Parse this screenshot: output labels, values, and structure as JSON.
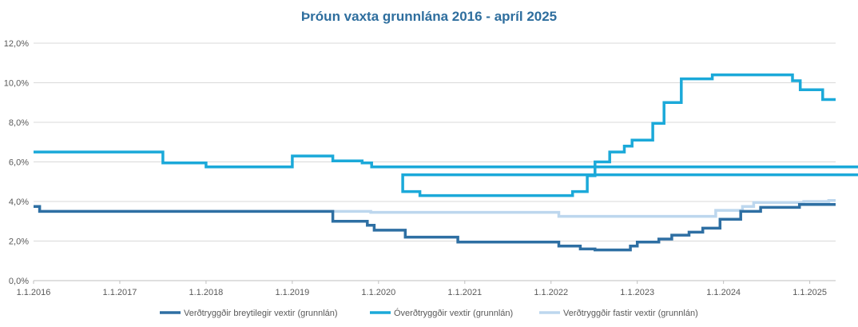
{
  "chart_data": {
    "type": "line",
    "title": "Þróun vaxta grunnlána 2016 - apríl 2025",
    "xlabel": "",
    "ylabel": "",
    "x_start": 2016.0,
    "x_end": 2025.3,
    "ylim": [
      0,
      12
    ],
    "y_ticks": [
      0,
      2,
      4,
      6,
      8,
      10,
      12
    ],
    "y_tick_labels": [
      "0,0%",
      "2,0%",
      "4,0%",
      "6,0%",
      "8,0%",
      "10,0%",
      "12,0%"
    ],
    "x_ticks": [
      2016,
      2017,
      2018,
      2019,
      2020,
      2021,
      2022,
      2023,
      2024,
      2025
    ],
    "x_tick_labels": [
      "1.1.2016",
      "1.1.2017",
      "1.1.2018",
      "1.1.2019",
      "1.1.2020",
      "1.1.2021",
      "1.1.2022",
      "1.1.2023",
      "1.1.2024",
      "1.1.2025"
    ],
    "grid": true,
    "legend_position": "bottom",
    "series": [
      {
        "name": "Verðtryggðir breytilegir vextir (grunnlán)",
        "color": "#2e6fa3",
        "step": true,
        "points": [
          [
            2016.0,
            3.75
          ],
          [
            2016.07,
            3.5
          ],
          [
            2019.47,
            3.0
          ],
          [
            2019.87,
            2.8
          ],
          [
            2019.95,
            2.55
          ],
          [
            2020.31,
            2.2
          ],
          [
            2020.92,
            1.95
          ],
          [
            2022.09,
            1.75
          ],
          [
            2022.34,
            1.6
          ],
          [
            2022.51,
            1.55
          ],
          [
            2022.92,
            1.75
          ],
          [
            2023.0,
            1.95
          ],
          [
            2023.25,
            2.1
          ],
          [
            2023.4,
            2.3
          ],
          [
            2023.6,
            2.45
          ],
          [
            2023.76,
            2.65
          ],
          [
            2023.96,
            3.1
          ],
          [
            2024.2,
            3.5
          ],
          [
            2024.43,
            3.7
          ],
          [
            2024.88,
            3.85
          ],
          [
            2025.3,
            3.85
          ]
        ]
      },
      {
        "name": "Óverðtryggðir vextir (grunnlán)",
        "color": "#1ba9d9",
        "step": true,
        "points": [
          [
            2016.0,
            6.5
          ],
          [
            2017.5,
            5.95
          ],
          [
            2018.0,
            5.75
          ],
          [
            2019.0,
            6.3
          ],
          [
            2019.47,
            6.05
          ],
          [
            2019.81,
            5.95
          ],
          [
            2019.92,
            5.75
          ],
          [
            219.99,
            5.35
          ],
          [
            2020.28,
            4.5
          ],
          [
            2020.48,
            4.3
          ],
          [
            2022.25,
            4.5
          ],
          [
            2022.42,
            5.3
          ],
          [
            2022.51,
            6.0
          ],
          [
            2022.68,
            6.5
          ],
          [
            2022.85,
            6.8
          ],
          [
            2022.94,
            7.1
          ],
          [
            2023.18,
            7.95
          ],
          [
            2023.31,
            9.0
          ],
          [
            2023.51,
            10.2
          ],
          [
            2023.87,
            10.4
          ],
          [
            2024.8,
            10.1
          ],
          [
            2024.89,
            9.65
          ],
          [
            2025.15,
            9.15
          ],
          [
            2025.3,
            9.15
          ]
        ]
      },
      {
        "name": "Verðtryggðir fastir vextir (grunnlán)",
        "color": "#bdd7ee",
        "step": true,
        "points": [
          [
            2016.0,
            3.75
          ],
          [
            2016.07,
            3.5
          ],
          [
            2019.91,
            3.45
          ],
          [
            2022.09,
            3.25
          ],
          [
            2023.91,
            3.55
          ],
          [
            2024.22,
            3.75
          ],
          [
            2024.35,
            3.95
          ],
          [
            2024.93,
            4.0
          ],
          [
            2025.22,
            4.05
          ],
          [
            2025.3,
            4.05
          ]
        ]
      }
    ]
  }
}
